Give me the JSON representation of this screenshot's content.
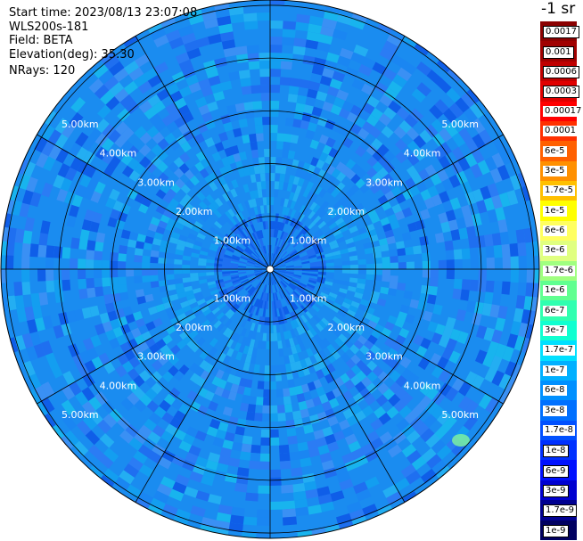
{
  "header": {
    "start_time": "Start time: 2023/08/13 23:07:08",
    "instrument": "WLS200s-181",
    "field": "Field: BETA",
    "elevation": "Elevation(deg): 35.30",
    "nrays": "NRays: 120"
  },
  "colorbar": {
    "unit_title": "-1 sr",
    "labels": [
      "0.0017",
      "0.001",
      "0.0006",
      "0.0003",
      "0.00017",
      "0.0001",
      "6e-5",
      "3e-5",
      "1.7e-5",
      "1e-5",
      "6e-6",
      "3e-6",
      "1.7e-6",
      "1e-6",
      "6e-7",
      "3e-7",
      "1.7e-7",
      "1e-7",
      "6e-8",
      "3e-8",
      "1.7e-8",
      "1e-8",
      "6e-9",
      "3e-9",
      "1.7e-9",
      "1e-9"
    ],
    "colors": [
      "#8b0000",
      "#a00000",
      "#c00000",
      "#e00000",
      "#ff0000",
      "#ff3000",
      "#ff6000",
      "#ff9000",
      "#ffc000",
      "#ffff00",
      "#ffff60",
      "#e0ff80",
      "#a0ff80",
      "#60ff90",
      "#30ffb0",
      "#10ffd0",
      "#00e0ff",
      "#00b0ff",
      "#0090ff",
      "#0070ff",
      "#0050ff",
      "#0030ff",
      "#0010ff",
      "#0000d0",
      "#000090",
      "#000060"
    ]
  },
  "range_rings": {
    "labels": [
      "1.00km",
      "2.00km",
      "3.00km",
      "4.00km",
      "5.00km"
    ],
    "values_km": [
      1,
      2,
      3,
      4,
      5
    ],
    "max_range_km": 5.1
  }
}
